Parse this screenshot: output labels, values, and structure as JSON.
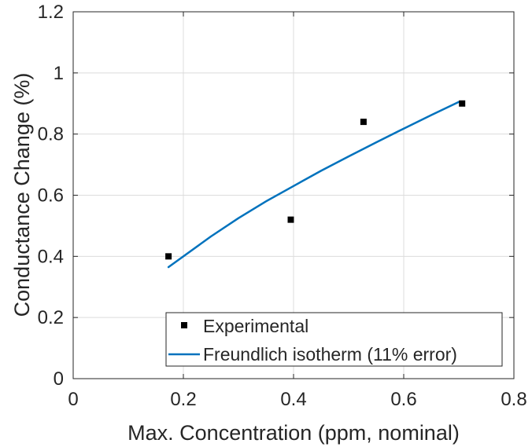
{
  "chart_data": {
    "type": "scatter",
    "title": "",
    "xlabel": "Max. Concentration (ppm, nominal)",
    "ylabel": "Conductance Change (%)",
    "xlim": [
      0,
      0.8
    ],
    "ylim": [
      0,
      1.2
    ],
    "xticks": [
      0,
      0.2,
      0.4,
      0.6,
      0.8
    ],
    "xtick_labels": [
      "0",
      "0.2",
      "0.4",
      "0.6",
      "0.8"
    ],
    "yticks": [
      0,
      0.2,
      0.4,
      0.6,
      0.8,
      1,
      1.2
    ],
    "ytick_labels": [
      "0",
      "0.2",
      "0.4",
      "0.6",
      "0.8",
      "1",
      "1.2"
    ],
    "grid": true,
    "legend_position": "bottom-right",
    "series": [
      {
        "name": "Experimental",
        "kind": "markers",
        "marker": "square",
        "color": "#000000",
        "x": [
          0.173,
          0.395,
          0.527,
          0.706
        ],
        "y": [
          0.4,
          0.52,
          0.84,
          0.9
        ]
      },
      {
        "name": "Freundlich isotherm (11% error)",
        "kind": "line",
        "color": "#0072BD",
        "x": [
          0.173,
          0.25,
          0.3,
          0.35,
          0.4,
          0.45,
          0.5,
          0.55,
          0.6,
          0.65,
          0.7
        ],
        "y": [
          0.365,
          0.465,
          0.525,
          0.58,
          0.63,
          0.68,
          0.727,
          0.773,
          0.818,
          0.862,
          0.905
        ]
      }
    ]
  }
}
